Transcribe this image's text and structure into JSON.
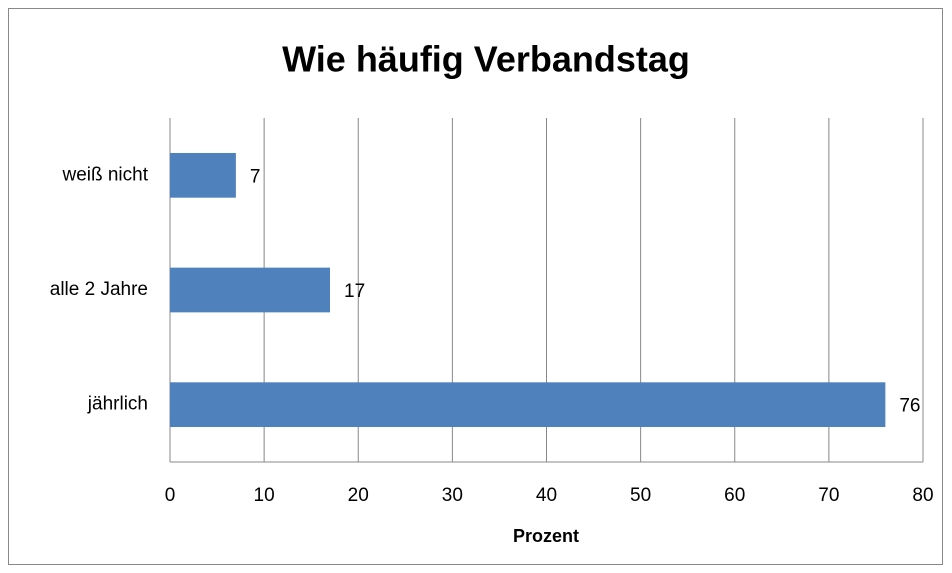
{
  "chart_data": {
    "type": "bar",
    "orientation": "horizontal",
    "title": "Wie häufig Verbandstag",
    "categories": [
      "jährlich",
      "alle 2 Jahre",
      "weiß nicht"
    ],
    "values": [
      76,
      17,
      7
    ],
    "color": "#4f81bd",
    "xlabel": "Prozent",
    "xlim": [
      0,
      80
    ],
    "xticks": [
      0,
      10,
      20,
      30,
      40,
      50,
      60,
      70,
      80
    ],
    "grid": true
  }
}
